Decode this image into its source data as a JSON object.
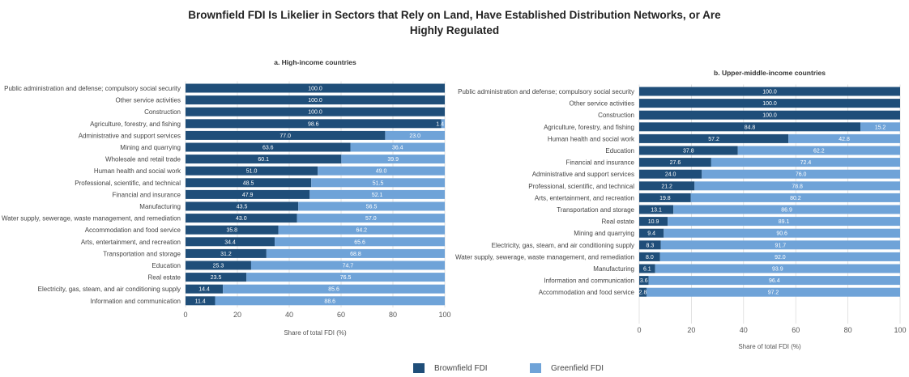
{
  "title_line1": "Brownfield FDI Is Likelier in Sectors that Rely on Land, Have Established Distribution Networks, or Are",
  "title_line2": "Highly Regulated",
  "legend": {
    "brownfield": "Brownfield FDI",
    "greenfield": "Greenfield FDI",
    "brownfield_color": "#1f4e79",
    "greenfield_color": "#6fa3d8"
  },
  "chart_data": [
    {
      "type": "bar",
      "orientation": "horizontal",
      "stacked": true,
      "title": "a. High-income countries",
      "xlabel": "Share of total FDI (%)",
      "xlim": [
        0,
        100
      ],
      "xticks": [
        0,
        20,
        40,
        60,
        80,
        100
      ],
      "categories": [
        "Public administration and defense; compulsory social security",
        "Other service activities",
        "Construction",
        "Agriculture, forestry, and fishing",
        "Administrative and support services",
        "Mining and quarrying",
        "Wholesale and retail trade",
        "Human health and social work",
        "Professional, scientific, and technical",
        "Financial and insurance",
        "Manufacturing",
        "Water supply, sewerage, waste management, and remediation",
        "Accommodation and food service",
        "Arts, entertainment, and recreation",
        "Transportation and storage",
        "Education",
        "Real estate",
        "Electricity, gas, steam, and air conditioning supply",
        "Information and communication"
      ],
      "series": [
        {
          "name": "Brownfield FDI",
          "values": [
            100.0,
            100.0,
            100.0,
            98.6,
            77.0,
            63.6,
            60.1,
            51.0,
            48.5,
            47.9,
            43.5,
            43.0,
            35.8,
            34.4,
            31.2,
            25.3,
            23.5,
            14.4,
            11.4
          ]
        },
        {
          "name": "Greenfield FDI",
          "values": [
            0,
            0,
            0,
            1.4,
            23.0,
            36.4,
            39.9,
            49.0,
            51.5,
            52.1,
            56.5,
            57.0,
            64.2,
            65.6,
            68.8,
            74.7,
            76.5,
            85.6,
            88.6
          ]
        }
      ],
      "labels_brownfield": [
        "100.0",
        "100.0",
        "100.0",
        "98.6",
        "77.0",
        "63.6",
        "60.1",
        "51.0",
        "48.5",
        "47.9",
        "43.5",
        "43.0",
        "35.8",
        "34.4",
        "31.2",
        "25.3",
        "23.5",
        "14.4",
        "11.4"
      ],
      "labels_greenfield": [
        "",
        "",
        "",
        "1.4",
        "23.0",
        "36.4",
        "39.9",
        "49.0",
        "51.5",
        "52.1",
        "56.5",
        "57.0",
        "64.2",
        "65.6",
        "68.8",
        "74.7",
        "76.5",
        "85.6",
        "88.6"
      ]
    },
    {
      "type": "bar",
      "orientation": "horizontal",
      "stacked": true,
      "title": "b. Upper-middle-income countries",
      "xlabel": "Share of total FDI (%)",
      "xlim": [
        0,
        100
      ],
      "xticks": [
        0,
        20,
        40,
        60,
        80,
        100
      ],
      "categories": [
        "Public administration and defense; compulsory social security",
        "Other service activities",
        "Construction",
        "Agriculture, forestry, and fishing",
        "Human health and social work",
        "Education",
        "Financial and insurance",
        "Administrative and support services",
        "Professional, scientific, and technical",
        "Arts, entertainment, and recreation",
        "Transportation and storage",
        "Real estate",
        "Mining and quarrying",
        "Electricity, gas, steam, and air conditioning supply",
        "Water supply, sewerage, waste management, and remediation",
        "Manufacturing",
        "Information and communication",
        "Accommodation and food service"
      ],
      "series": [
        {
          "name": "Brownfield FDI",
          "values": [
            100.0,
            100.0,
            100.0,
            84.8,
            57.2,
            37.8,
            27.6,
            24.0,
            21.2,
            19.8,
            13.1,
            10.9,
            9.4,
            8.3,
            8.0,
            6.1,
            3.6,
            2.8
          ]
        },
        {
          "name": "Greenfield FDI",
          "values": [
            0,
            0,
            0,
            15.2,
            42.8,
            62.2,
            72.4,
            76.0,
            78.8,
            80.2,
            86.9,
            89.1,
            90.6,
            91.7,
            92.0,
            93.9,
            96.4,
            97.2
          ]
        }
      ],
      "labels_brownfield": [
        "100.0",
        "100.0",
        "100.0",
        "84.8",
        "57.2",
        "37.8",
        "27.6",
        "24.0",
        "21.2",
        "19.8",
        "13.1",
        "10.9",
        "9.4",
        "8.3",
        "8.0",
        "6.1",
        "3.6",
        "2.8"
      ],
      "labels_greenfield": [
        "",
        "",
        "",
        "15.2",
        "42.8",
        "62.2",
        "72.4",
        "76.0",
        "78.8",
        "80.2",
        "86.9",
        "89.1",
        "90.6",
        "91.7",
        "92.0",
        "93.9",
        "96.4",
        "97.2"
      ]
    }
  ]
}
